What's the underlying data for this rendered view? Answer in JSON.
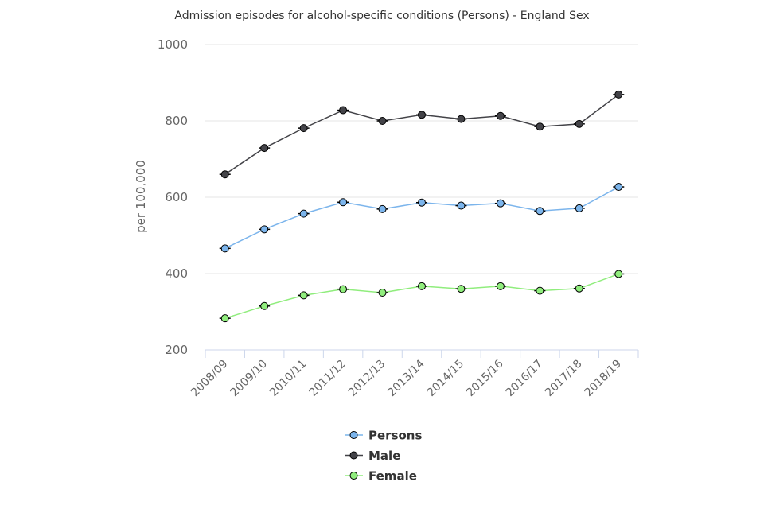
{
  "chart_data": {
    "type": "line",
    "title": "Admission episodes for alcohol-specific conditions (Persons) - England Sex",
    "xlabel": "",
    "ylabel": "per 100,000",
    "ylim": [
      200,
      1000
    ],
    "yticks": [
      "200",
      "400",
      "600",
      "800",
      "1000"
    ],
    "grid": true,
    "legend_position": "bottom-center",
    "categories": [
      "2008/09",
      "2009/10",
      "2010/11",
      "2011/12",
      "2012/13",
      "2013/14",
      "2014/15",
      "2015/16",
      "2016/17",
      "2017/18",
      "2018/19"
    ],
    "series": [
      {
        "name": "Persons",
        "color": "#7cb5ec",
        "marker": "#7cb5ec",
        "values": [
          466,
          516,
          557,
          587,
          569,
          586,
          578,
          584,
          564,
          571,
          627
        ]
      },
      {
        "name": "Male",
        "color": "#434348",
        "marker": "#434348",
        "values": [
          660,
          729,
          781,
          828,
          800,
          816,
          805,
          813,
          785,
          792,
          869
        ]
      },
      {
        "name": "Female",
        "color": "#90ed7d",
        "marker": "#90ed7d",
        "values": [
          283,
          315,
          343,
          359,
          350,
          367,
          360,
          367,
          355,
          361,
          399
        ]
      }
    ]
  }
}
